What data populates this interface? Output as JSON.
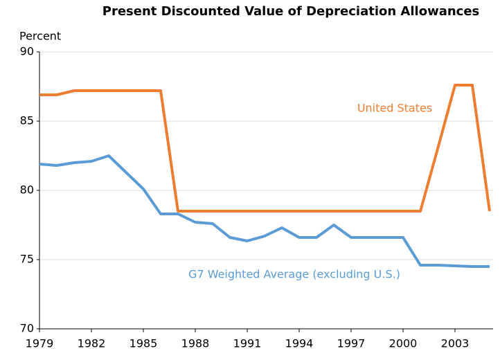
{
  "chart_data": {
    "type": "line",
    "title": "Present Discounted Value of Depreciation Allowances",
    "y_label": "Percent",
    "x": [
      1979,
      1980,
      1981,
      1982,
      1983,
      1984,
      1985,
      1986,
      1987,
      1988,
      1989,
      1990,
      1991,
      1992,
      1993,
      1994,
      1995,
      1996,
      1997,
      1998,
      1999,
      2000,
      2001,
      2002,
      2003,
      2004,
      2005
    ],
    "series": [
      {
        "name": "United States",
        "color": "#ED7D31",
        "values": [
          86.9,
          86.9,
          87.2,
          87.2,
          87.2,
          87.2,
          87.2,
          87.2,
          78.5,
          78.5,
          78.5,
          78.5,
          78.5,
          78.5,
          78.5,
          78.5,
          78.5,
          78.5,
          78.5,
          78.5,
          78.5,
          78.5,
          78.5,
          83.0,
          87.6,
          87.6,
          78.5
        ]
      },
      {
        "name": "G7 Weighted Average (excluding U.S.)",
        "color": "#5B9BD5",
        "values": [
          81.9,
          81.8,
          82.0,
          82.1,
          82.5,
          81.3,
          80.1,
          78.3,
          78.3,
          77.7,
          77.6,
          76.6,
          76.35,
          76.7,
          77.3,
          76.6,
          76.6,
          77.5,
          76.6,
          76.6,
          76.6,
          76.6,
          74.6,
          74.6,
          74.55,
          74.5,
          74.5
        ]
      }
    ],
    "xlim": [
      1979,
      2005.2
    ],
    "xticks": [
      1979,
      1982,
      1985,
      1988,
      1991,
      1994,
      1997,
      2000,
      2003
    ],
    "ylim": [
      70,
      90
    ],
    "yticks": [
      70,
      75,
      80,
      85,
      90
    ],
    "grid": true
  }
}
